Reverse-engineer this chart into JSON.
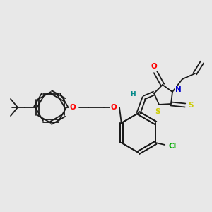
{
  "background_color": "#e8e8e8",
  "bond_color": "#1a1a1a",
  "atom_colors": {
    "O": "#ff0000",
    "N": "#0000cc",
    "S": "#cccc00",
    "Cl": "#00aa00",
    "H": "#008888",
    "C": "#1a1a1a"
  },
  "font_size": 7.5,
  "lw": 1.3
}
